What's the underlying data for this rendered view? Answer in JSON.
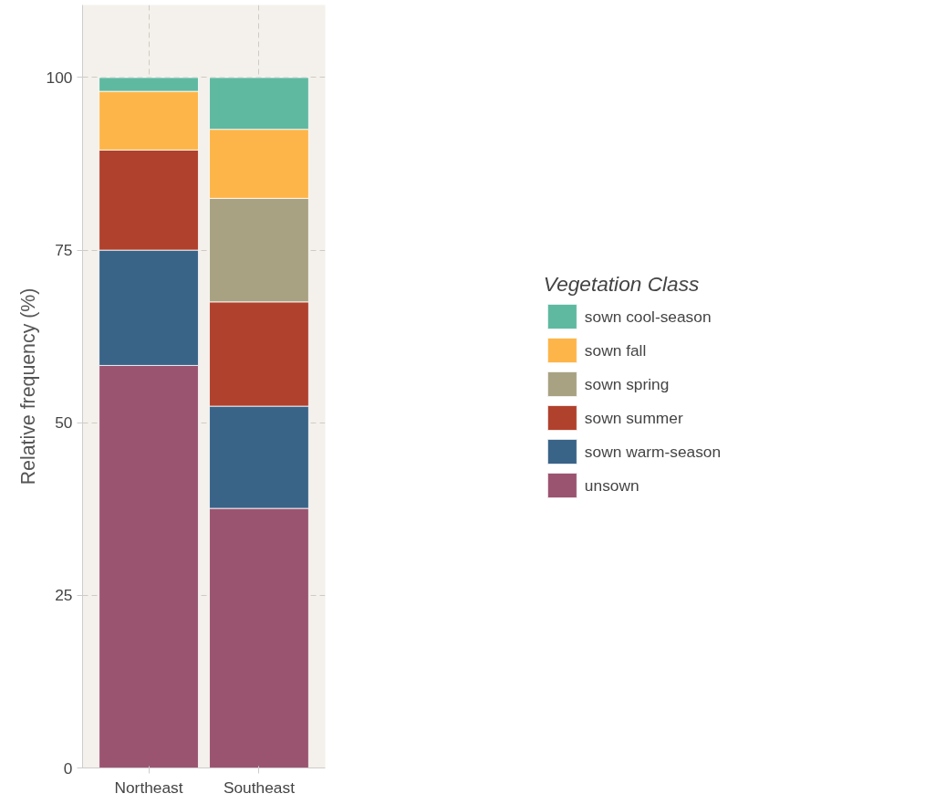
{
  "chart_data": {
    "type": "bar",
    "stacked": true,
    "categories": [
      "Northeast",
      "Southeast"
    ],
    "ylabel": "Relative frequency (%)",
    "legend_title": "Vegetation Class",
    "series": [
      {
        "name": "unsown",
        "color": "#9b5470",
        "values": [
          58.3,
          37.6
        ]
      },
      {
        "name": "sown warm-season",
        "color": "#3a6388",
        "values": [
          16.7,
          14.8
        ]
      },
      {
        "name": "sown summer",
        "color": "#b0412d",
        "values": [
          14.5,
          15.1
        ]
      },
      {
        "name": "sown spring",
        "color": "#a8a283",
        "values": [
          0,
          15
        ]
      },
      {
        "name": "sown fall",
        "color": "#fdb54a",
        "values": [
          8.5,
          10
        ]
      },
      {
        "name": "sown cool-season",
        "color": "#5fb9a0",
        "values": [
          2,
          7.5
        ]
      }
    ],
    "ylim": [
      0,
      110.5
    ],
    "yticks": [
      0,
      25,
      50,
      75,
      100
    ],
    "grid": true,
    "legend": "right"
  }
}
